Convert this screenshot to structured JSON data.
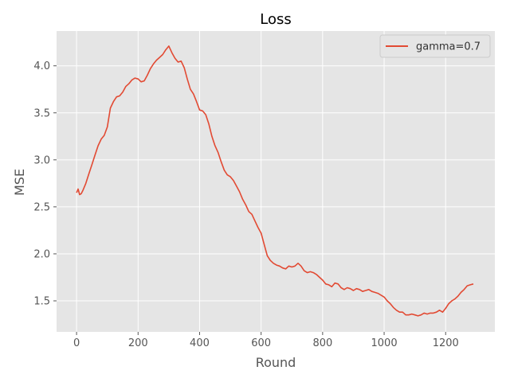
{
  "chart_data": {
    "type": "line",
    "title": "Loss",
    "xlabel": "Round",
    "ylabel": "MSE",
    "xlim": [
      -65,
      1360
    ],
    "ylim": [
      1.17,
      4.37
    ],
    "xticks": [
      0,
      200,
      400,
      600,
      800,
      1000,
      1200
    ],
    "yticks": [
      1.5,
      2.0,
      2.5,
      3.0,
      3.5,
      4.0
    ],
    "xtick_labels": [
      "0",
      "200",
      "400",
      "600",
      "800",
      "1000",
      "1200"
    ],
    "ytick_labels": [
      "1.5",
      "2.0",
      "2.5",
      "3.0",
      "3.5",
      "4.0"
    ],
    "grid": true,
    "legend_position": "top-right",
    "colors": {
      "plot_background": "#e5e5e5",
      "grid": "#ffffff",
      "series": "#e24a33"
    },
    "series": [
      {
        "name": "gamma=0.7",
        "x": [
          0,
          5,
          10,
          15,
          20,
          30,
          40,
          50,
          60,
          70,
          80,
          90,
          100,
          110,
          120,
          130,
          140,
          150,
          160,
          170,
          180,
          190,
          200,
          210,
          220,
          230,
          240,
          250,
          260,
          270,
          280,
          290,
          300,
          310,
          320,
          330,
          340,
          350,
          360,
          370,
          380,
          390,
          400,
          410,
          420,
          430,
          440,
          450,
          460,
          470,
          480,
          490,
          500,
          510,
          520,
          530,
          540,
          550,
          560,
          570,
          580,
          590,
          600,
          610,
          620,
          630,
          640,
          650,
          660,
          670,
          680,
          690,
          700,
          710,
          720,
          730,
          740,
          750,
          760,
          770,
          780,
          790,
          800,
          810,
          820,
          830,
          840,
          850,
          860,
          870,
          880,
          890,
          900,
          910,
          920,
          930,
          940,
          950,
          960,
          970,
          980,
          990,
          1000,
          1010,
          1020,
          1030,
          1040,
          1050,
          1060,
          1070,
          1080,
          1090,
          1100,
          1110,
          1120,
          1130,
          1140,
          1150,
          1160,
          1170,
          1180,
          1190,
          1200,
          1210,
          1220,
          1230,
          1240,
          1250,
          1260,
          1270,
          1280,
          1290
        ],
        "y": [
          2.65,
          2.69,
          2.63,
          2.64,
          2.67,
          2.75,
          2.85,
          2.95,
          3.05,
          3.15,
          3.22,
          3.26,
          3.35,
          3.55,
          3.62,
          3.67,
          3.68,
          3.72,
          3.78,
          3.81,
          3.85,
          3.87,
          3.86,
          3.83,
          3.84,
          3.9,
          3.97,
          4.02,
          4.06,
          4.09,
          4.12,
          4.17,
          4.21,
          4.14,
          4.08,
          4.04,
          4.05,
          3.98,
          3.86,
          3.75,
          3.7,
          3.62,
          3.53,
          3.52,
          3.48,
          3.38,
          3.25,
          3.15,
          3.08,
          2.98,
          2.89,
          2.84,
          2.82,
          2.78,
          2.72,
          2.66,
          2.58,
          2.52,
          2.45,
          2.42,
          2.35,
          2.28,
          2.22,
          2.1,
          1.98,
          1.93,
          1.9,
          1.88,
          1.87,
          1.85,
          1.84,
          1.87,
          1.86,
          1.87,
          1.9,
          1.87,
          1.82,
          1.8,
          1.81,
          1.8,
          1.78,
          1.75,
          1.72,
          1.68,
          1.67,
          1.65,
          1.69,
          1.68,
          1.64,
          1.62,
          1.64,
          1.63,
          1.61,
          1.63,
          1.62,
          1.6,
          1.61,
          1.62,
          1.6,
          1.59,
          1.58,
          1.56,
          1.54,
          1.5,
          1.47,
          1.43,
          1.4,
          1.38,
          1.38,
          1.35,
          1.35,
          1.36,
          1.35,
          1.34,
          1.35,
          1.37,
          1.36,
          1.37,
          1.37,
          1.38,
          1.4,
          1.38,
          1.42,
          1.47,
          1.5,
          1.52,
          1.55,
          1.59,
          1.62,
          1.66,
          1.67,
          1.68
        ]
      }
    ]
  }
}
